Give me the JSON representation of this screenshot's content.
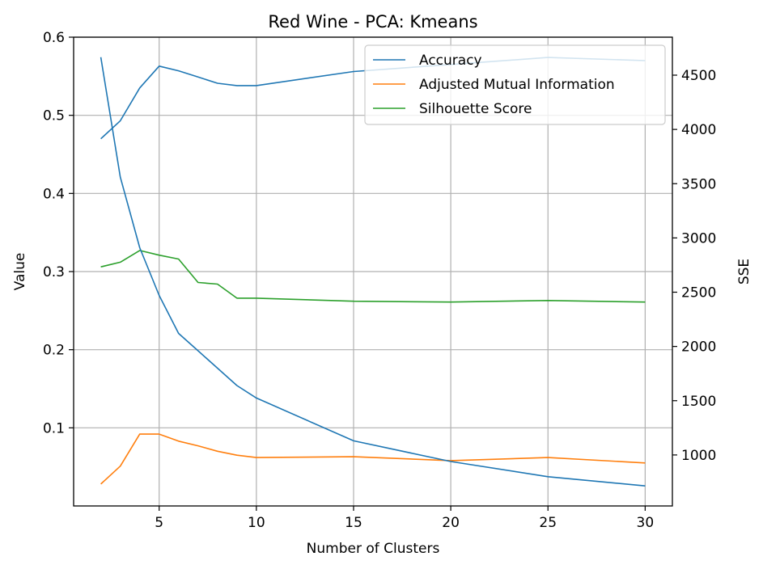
{
  "chart_data": {
    "type": "line",
    "title": "Red Wine - PCA: Kmeans",
    "xlabel": "Number of Clusters",
    "ylabel": "Value",
    "y2label": "SSE",
    "xlim": [
      0.6,
      31.4
    ],
    "ylim": [
      0.0,
      0.6
    ],
    "y2lim": [
      530,
      4850
    ],
    "x_ticks": [
      5,
      10,
      15,
      20,
      25,
      30
    ],
    "y_ticks": [
      0.1,
      0.2,
      0.3,
      0.4,
      0.5,
      0.6
    ],
    "y2_ticks": [
      1000,
      1500,
      2000,
      2500,
      3000,
      3500,
      4000,
      4500
    ],
    "grid": true,
    "legend_position": "top-right",
    "series": [
      {
        "name": "Accuracy",
        "axis": "left",
        "color": "#1f77b4",
        "x": [
          2,
          3,
          4,
          5,
          6,
          7,
          8,
          9,
          10,
          15,
          20,
          25,
          30
        ],
        "y": [
          0.47,
          0.493,
          0.535,
          0.563,
          0.557,
          0.549,
          0.541,
          0.538,
          0.538,
          0.556,
          0.565,
          0.574,
          0.57
        ]
      },
      {
        "name": "Adjusted Mutual Information",
        "axis": "left",
        "color": "#ff7f0e",
        "x": [
          2,
          3,
          4,
          5,
          6,
          7,
          8,
          9,
          10,
          15,
          20,
          25,
          30
        ],
        "y": [
          0.028,
          0.051,
          0.092,
          0.092,
          0.083,
          0.077,
          0.07,
          0.065,
          0.062,
          0.063,
          0.058,
          0.062,
          0.055
        ]
      },
      {
        "name": "Silhouette Score",
        "axis": "left",
        "color": "#2ca02c",
        "x": [
          2,
          3,
          4,
          5,
          6,
          7,
          8,
          9,
          10,
          15,
          20,
          25,
          30
        ],
        "y": [
          0.306,
          0.312,
          0.327,
          0.321,
          0.316,
          0.286,
          0.284,
          0.266,
          0.266,
          0.262,
          0.261,
          0.263,
          0.261
        ]
      },
      {
        "name": "SSE",
        "axis": "right",
        "color": "#1f77b4",
        "x": [
          2,
          3,
          4,
          5,
          6,
          7,
          8,
          9,
          10,
          15,
          20,
          25,
          30
        ],
        "y": [
          4665,
          3560,
          2910,
          2470,
          2120,
          1960,
          1800,
          1640,
          1525,
          1130,
          940,
          800,
          715
        ]
      }
    ]
  }
}
